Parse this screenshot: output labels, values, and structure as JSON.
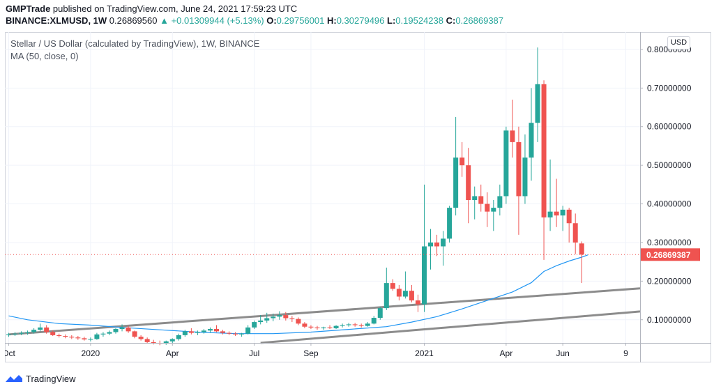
{
  "header": {
    "author": "GMPTrade",
    "published_text": "published on TradingView.com, June 24, 2021 17:59:23 UTC",
    "symbol": "BINANCE:XLMUSD, 1W",
    "last": "0.26869560",
    "change": "▲ +0.01309944 (+5.13%)",
    "o_label": "O:",
    "o_value": "0.29756001",
    "h_label": "H:",
    "h_value": "0.30279496",
    "l_label": "L:",
    "l_value": "0.19524238",
    "c_label": "C:",
    "c_value": "0.26869387"
  },
  "legend": {
    "title": "Stellar / US Dollar (calculated by TradingView), 1W, BINANCE",
    "ma": "MA (50, close, 0)"
  },
  "currency_button": "USD",
  "footer": {
    "brand": "TradingView"
  },
  "colors": {
    "up": "#26a69a",
    "down": "#ef5350",
    "ma": "#2196f3",
    "trendline": "#8c8c8c",
    "grid": "#f0f3fa",
    "price_tag": "#ef5350"
  },
  "chart_data": {
    "type": "candlestick",
    "timeframe": "1W",
    "ylim": [
      0.04,
      0.845
    ],
    "y_ticks": [
      "0.10000000",
      "0.20000000",
      "0.30000000",
      "0.40000000",
      "0.50000000",
      "0.60000000",
      "0.70000000",
      "0.80000000"
    ],
    "y_tick_values": [
      0.1,
      0.2,
      0.3,
      0.4,
      0.5,
      0.6,
      0.7,
      0.8
    ],
    "x_ticks": [
      {
        "label": "Oct",
        "i": 0
      },
      {
        "label": "2020",
        "i": 13
      },
      {
        "label": "Apr",
        "i": 26
      },
      {
        "label": "Jul",
        "i": 39
      },
      {
        "label": "Sep",
        "i": 48
      },
      {
        "label": "2021",
        "i": 66
      },
      {
        "label": "Apr",
        "i": 79
      },
      {
        "label": "Jun",
        "i": 88
      },
      {
        "label": "9",
        "i": 98
      }
    ],
    "last_price_label": "0.26869387",
    "last_price": 0.26869,
    "candles": [
      [
        0.06,
        0.066,
        0.056,
        0.062
      ],
      [
        0.062,
        0.068,
        0.058,
        0.064
      ],
      [
        0.064,
        0.07,
        0.06,
        0.066
      ],
      [
        0.066,
        0.072,
        0.061,
        0.068
      ],
      [
        0.068,
        0.078,
        0.064,
        0.074
      ],
      [
        0.074,
        0.09,
        0.07,
        0.08
      ],
      [
        0.08,
        0.086,
        0.064,
        0.068
      ],
      [
        0.068,
        0.072,
        0.058,
        0.06
      ],
      [
        0.06,
        0.064,
        0.054,
        0.058
      ],
      [
        0.058,
        0.062,
        0.052,
        0.056
      ],
      [
        0.056,
        0.06,
        0.05,
        0.054
      ],
      [
        0.054,
        0.058,
        0.048,
        0.052
      ],
      [
        0.052,
        0.056,
        0.046,
        0.049
      ],
      [
        0.049,
        0.054,
        0.044,
        0.05
      ],
      [
        0.05,
        0.066,
        0.048,
        0.062
      ],
      [
        0.062,
        0.068,
        0.056,
        0.064
      ],
      [
        0.064,
        0.072,
        0.06,
        0.068
      ],
      [
        0.068,
        0.078,
        0.064,
        0.076
      ],
      [
        0.076,
        0.088,
        0.07,
        0.08
      ],
      [
        0.08,
        0.084,
        0.066,
        0.07
      ],
      [
        0.07,
        0.072,
        0.052,
        0.056
      ],
      [
        0.056,
        0.06,
        0.046,
        0.05
      ],
      [
        0.05,
        0.054,
        0.038,
        0.042
      ],
      [
        0.042,
        0.048,
        0.036,
        0.04
      ],
      [
        0.04,
        0.046,
        0.034,
        0.038
      ],
      [
        0.038,
        0.046,
        0.035,
        0.044
      ],
      [
        0.044,
        0.052,
        0.04,
        0.05
      ],
      [
        0.05,
        0.064,
        0.046,
        0.06
      ],
      [
        0.06,
        0.074,
        0.056,
        0.07
      ],
      [
        0.07,
        0.078,
        0.062,
        0.066
      ],
      [
        0.066,
        0.072,
        0.06,
        0.068
      ],
      [
        0.068,
        0.076,
        0.064,
        0.072
      ],
      [
        0.072,
        0.08,
        0.066,
        0.076
      ],
      [
        0.076,
        0.086,
        0.068,
        0.07
      ],
      [
        0.07,
        0.074,
        0.062,
        0.066
      ],
      [
        0.066,
        0.07,
        0.06,
        0.064
      ],
      [
        0.064,
        0.068,
        0.058,
        0.062
      ],
      [
        0.062,
        0.066,
        0.056,
        0.064
      ],
      [
        0.064,
        0.086,
        0.062,
        0.08
      ],
      [
        0.08,
        0.098,
        0.076,
        0.094
      ],
      [
        0.094,
        0.112,
        0.088,
        0.098
      ],
      [
        0.098,
        0.118,
        0.092,
        0.104
      ],
      [
        0.104,
        0.116,
        0.096,
        0.108
      ],
      [
        0.108,
        0.122,
        0.1,
        0.112
      ],
      [
        0.112,
        0.12,
        0.098,
        0.104
      ],
      [
        0.104,
        0.11,
        0.094,
        0.102
      ],
      [
        0.102,
        0.106,
        0.086,
        0.09
      ],
      [
        0.09,
        0.094,
        0.078,
        0.082
      ],
      [
        0.082,
        0.086,
        0.076,
        0.08
      ],
      [
        0.08,
        0.084,
        0.074,
        0.078
      ],
      [
        0.078,
        0.082,
        0.074,
        0.08
      ],
      [
        0.08,
        0.086,
        0.076,
        0.078
      ],
      [
        0.078,
        0.086,
        0.076,
        0.084
      ],
      [
        0.084,
        0.09,
        0.08,
        0.086
      ],
      [
        0.086,
        0.092,
        0.082,
        0.088
      ],
      [
        0.088,
        0.092,
        0.082,
        0.086
      ],
      [
        0.086,
        0.09,
        0.08,
        0.084
      ],
      [
        0.084,
        0.094,
        0.082,
        0.09
      ],
      [
        0.09,
        0.11,
        0.088,
        0.105
      ],
      [
        0.105,
        0.134,
        0.1,
        0.13
      ],
      [
        0.13,
        0.235,
        0.125,
        0.195
      ],
      [
        0.195,
        0.205,
        0.175,
        0.18
      ],
      [
        0.18,
        0.19,
        0.15,
        0.16
      ],
      [
        0.16,
        0.225,
        0.155,
        0.175
      ],
      [
        0.175,
        0.19,
        0.145,
        0.15
      ],
      [
        0.15,
        0.165,
        0.12,
        0.14
      ],
      [
        0.14,
        0.45,
        0.12,
        0.29
      ],
      [
        0.29,
        0.335,
        0.23,
        0.3
      ],
      [
        0.3,
        0.32,
        0.265,
        0.29
      ],
      [
        0.29,
        0.33,
        0.24,
        0.31
      ],
      [
        0.31,
        0.395,
        0.3,
        0.39
      ],
      [
        0.39,
        0.625,
        0.37,
        0.52
      ],
      [
        0.52,
        0.56,
        0.47,
        0.5
      ],
      [
        0.5,
        0.545,
        0.35,
        0.41
      ],
      [
        0.41,
        0.445,
        0.36,
        0.42
      ],
      [
        0.42,
        0.45,
        0.38,
        0.4
      ],
      [
        0.4,
        0.43,
        0.34,
        0.38
      ],
      [
        0.38,
        0.41,
        0.33,
        0.39
      ],
      [
        0.39,
        0.45,
        0.37,
        0.42
      ],
      [
        0.42,
        0.6,
        0.4,
        0.59
      ],
      [
        0.59,
        0.67,
        0.52,
        0.56
      ],
      [
        0.56,
        0.6,
        0.32,
        0.42
      ],
      [
        0.42,
        0.58,
        0.4,
        0.52
      ],
      [
        0.52,
        0.7,
        0.46,
        0.61
      ],
      [
        0.61,
        0.805,
        0.56,
        0.71
      ],
      [
        0.71,
        0.72,
        0.255,
        0.365
      ],
      [
        0.365,
        0.515,
        0.33,
        0.38
      ],
      [
        0.38,
        0.465,
        0.34,
        0.37
      ],
      [
        0.37,
        0.395,
        0.33,
        0.385
      ],
      [
        0.385,
        0.39,
        0.3,
        0.35
      ],
      [
        0.35,
        0.375,
        0.27,
        0.3
      ],
      [
        0.2976,
        0.3028,
        0.1952,
        0.2687
      ]
    ],
    "ma": {
      "name": "MA (50, close, 0)",
      "points": [
        [
          0,
          0.11
        ],
        [
          3,
          0.1
        ],
        [
          8,
          0.09
        ],
        [
          13,
          0.086
        ],
        [
          18,
          0.08
        ],
        [
          24,
          0.074
        ],
        [
          30,
          0.068
        ],
        [
          36,
          0.064
        ],
        [
          42,
          0.064
        ],
        [
          48,
          0.068
        ],
        [
          54,
          0.075
        ],
        [
          60,
          0.082
        ],
        [
          64,
          0.094
        ],
        [
          68,
          0.108
        ],
        [
          72,
          0.128
        ],
        [
          76,
          0.15
        ],
        [
          80,
          0.172
        ],
        [
          83,
          0.196
        ],
        [
          85,
          0.225
        ],
        [
          87,
          0.24
        ],
        [
          89,
          0.252
        ],
        [
          91,
          0.262
        ],
        [
          92,
          0.268
        ]
      ]
    },
    "trendlines": [
      {
        "x1": 0,
        "y1": 0.062,
        "x2": 100,
        "y2": 0.181
      },
      {
        "x1": 40,
        "y1": 0.04,
        "x2": 100,
        "y2": 0.121
      }
    ]
  }
}
